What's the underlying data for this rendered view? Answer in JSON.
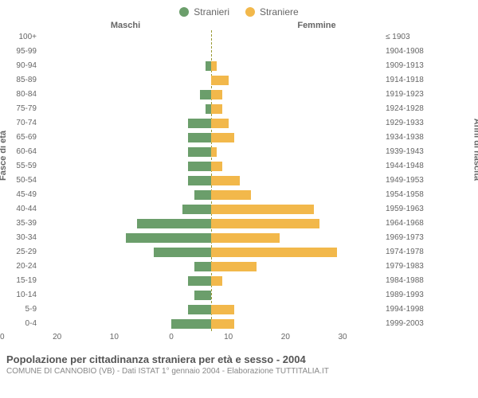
{
  "chart": {
    "type": "population-pyramid",
    "legend": [
      {
        "label": "Stranieri",
        "color": "#6b9e6b"
      },
      {
        "label": "Straniere",
        "color": "#f2b84b"
      }
    ],
    "header_left": "Maschi",
    "header_right": "Femmine",
    "y_left_title": "Fasce di età",
    "y_right_title": "Anni di nascita",
    "x_max": 30,
    "x_ticks": [
      30,
      20,
      10,
      0,
      10,
      20,
      30
    ],
    "male_color": "#6b9e6b",
    "female_color": "#f2b84b",
    "background": "#ffffff",
    "center_line_color": "#999933",
    "text_color": "#666666",
    "rows": [
      {
        "age": "100+",
        "birth": "≤ 1903",
        "m": 0,
        "f": 0
      },
      {
        "age": "95-99",
        "birth": "1904-1908",
        "m": 0,
        "f": 0
      },
      {
        "age": "90-94",
        "birth": "1909-1913",
        "m": 1,
        "f": 1
      },
      {
        "age": "85-89",
        "birth": "1914-1918",
        "m": 0,
        "f": 3
      },
      {
        "age": "80-84",
        "birth": "1919-1923",
        "m": 2,
        "f": 2
      },
      {
        "age": "75-79",
        "birth": "1924-1928",
        "m": 1,
        "f": 2
      },
      {
        "age": "70-74",
        "birth": "1929-1933",
        "m": 4,
        "f": 3
      },
      {
        "age": "65-69",
        "birth": "1934-1938",
        "m": 4,
        "f": 4
      },
      {
        "age": "60-64",
        "birth": "1939-1943",
        "m": 4,
        "f": 1
      },
      {
        "age": "55-59",
        "birth": "1944-1948",
        "m": 4,
        "f": 2
      },
      {
        "age": "50-54",
        "birth": "1949-1953",
        "m": 4,
        "f": 5
      },
      {
        "age": "45-49",
        "birth": "1954-1958",
        "m": 3,
        "f": 7
      },
      {
        "age": "40-44",
        "birth": "1959-1963",
        "m": 5,
        "f": 18
      },
      {
        "age": "35-39",
        "birth": "1964-1968",
        "m": 13,
        "f": 19
      },
      {
        "age": "30-34",
        "birth": "1969-1973",
        "m": 15,
        "f": 12
      },
      {
        "age": "25-29",
        "birth": "1974-1978",
        "m": 10,
        "f": 22
      },
      {
        "age": "20-24",
        "birth": "1979-1983",
        "m": 3,
        "f": 8
      },
      {
        "age": "15-19",
        "birth": "1984-1988",
        "m": 4,
        "f": 2
      },
      {
        "age": "10-14",
        "birth": "1989-1993",
        "m": 3,
        "f": 0
      },
      {
        "age": "5-9",
        "birth": "1994-1998",
        "m": 4,
        "f": 4
      },
      {
        "age": "0-4",
        "birth": "1999-2003",
        "m": 7,
        "f": 4
      }
    ]
  },
  "footer": {
    "title": "Popolazione per cittadinanza straniera per età e sesso - 2004",
    "subtitle": "COMUNE DI CANNOBIO (VB) - Dati ISTAT 1° gennaio 2004 - Elaborazione TUTTITALIA.IT"
  }
}
